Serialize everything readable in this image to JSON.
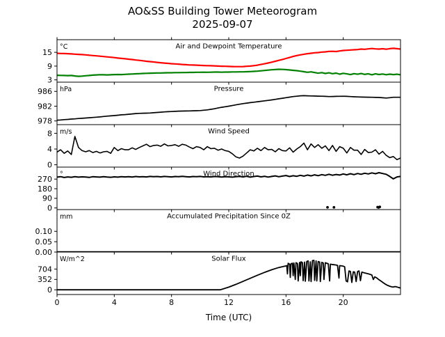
{
  "window": {
    "title": "AO&SS Building Tower Meteorogram",
    "subtitle": "2025-09-07"
  },
  "axis": {
    "xlabel": "Time (UTC)",
    "xlim": [
      0,
      24
    ],
    "xticks": [
      0,
      4,
      8,
      12,
      16,
      20
    ]
  },
  "colors": {
    "air": "#ff0000",
    "dewpoint": "#008000",
    "line": "#000000",
    "background": "#ffffff"
  },
  "chart_data": [
    {
      "type": "line",
      "id": "temperature",
      "title": "Air and Dewpoint Temperature",
      "unit": "°C",
      "ylim": [
        2,
        20.5
      ],
      "yticks": [
        3,
        9,
        15
      ],
      "series": [
        {
          "name": "air-temperature",
          "color": "#ff0000",
          "width": 2.2,
          "t0": 0,
          "dt": 0.25,
          "values": [
            14.6,
            14.5,
            14.45,
            14.4,
            14.3,
            14.2,
            14.1,
            14.0,
            13.9,
            13.75,
            13.6,
            13.45,
            13.3,
            13.15,
            13.0,
            12.85,
            12.7,
            12.5,
            12.35,
            12.2,
            12.0,
            11.85,
            11.65,
            11.5,
            11.3,
            11.1,
            10.95,
            10.8,
            10.6,
            10.45,
            10.3,
            10.2,
            10.05,
            9.95,
            9.85,
            9.7,
            9.6,
            9.5,
            9.45,
            9.4,
            9.3,
            9.25,
            9.2,
            9.15,
            9.1,
            9.0,
            8.95,
            8.9,
            8.85,
            8.8,
            8.75,
            8.75,
            8.8,
            8.9,
            9.0,
            9.2,
            9.4,
            9.7,
            10.0,
            10.35,
            10.7,
            11.1,
            11.5,
            11.9,
            12.3,
            12.75,
            13.2,
            13.6,
            13.9,
            14.15,
            14.4,
            14.6,
            14.8,
            14.9,
            15.1,
            15.2,
            15.4,
            15.45,
            15.35,
            15.6,
            15.8,
            15.9,
            16.0,
            16.1,
            16.2,
            16.4,
            16.3,
            16.5,
            16.65,
            16.5,
            16.4,
            16.55,
            16.35,
            16.6,
            16.75,
            16.6,
            16.4
          ]
        },
        {
          "name": "dewpoint-temperature",
          "color": "#008000",
          "width": 2.2,
          "t0": 0,
          "dt": 0.25,
          "values": [
            5.0,
            4.95,
            4.9,
            4.85,
            4.9,
            4.7,
            4.55,
            4.65,
            4.8,
            4.9,
            5.05,
            5.15,
            5.25,
            5.2,
            5.15,
            5.2,
            5.3,
            5.35,
            5.3,
            5.4,
            5.5,
            5.55,
            5.65,
            5.7,
            5.8,
            5.85,
            5.9,
            5.95,
            6.0,
            6.0,
            6.05,
            6.1,
            6.1,
            6.15,
            6.15,
            6.2,
            6.2,
            6.25,
            6.25,
            6.3,
            6.3,
            6.35,
            6.3,
            6.35,
            6.4,
            6.4,
            6.35,
            6.4,
            6.4,
            6.45,
            6.45,
            6.5,
            6.5,
            6.55,
            6.6,
            6.7,
            6.8,
            6.95,
            7.1,
            7.25,
            7.4,
            7.5,
            7.6,
            7.55,
            7.45,
            7.3,
            7.15,
            7.0,
            6.8,
            6.55,
            6.3,
            6.5,
            6.2,
            5.9,
            6.15,
            5.8,
            6.05,
            5.7,
            5.95,
            5.5,
            5.85,
            5.6,
            5.3,
            5.7,
            5.45,
            5.75,
            5.4,
            5.65,
            5.2,
            5.6,
            5.35,
            5.55,
            5.25,
            5.5,
            5.3,
            5.45,
            5.2
          ]
        }
      ]
    },
    {
      "type": "line",
      "id": "pressure",
      "title": "Pressure",
      "unit": "hPa",
      "ylim": [
        977,
        988.5
      ],
      "yticks": [
        978,
        982,
        986
      ],
      "series": [
        {
          "name": "pressure",
          "color": "#000000",
          "width": 1.7,
          "t0": 0,
          "dt": 0.25,
          "values": [
            978.2,
            978.27,
            978.35,
            978.42,
            978.5,
            978.57,
            978.65,
            978.72,
            978.8,
            978.87,
            978.95,
            979.02,
            979.1,
            979.2,
            979.3,
            979.37,
            979.45,
            979.55,
            979.65,
            979.72,
            979.8,
            979.9,
            980.0,
            980.05,
            980.1,
            980.12,
            980.15,
            980.22,
            980.3,
            980.37,
            980.45,
            980.5,
            980.55,
            980.6,
            980.65,
            980.67,
            980.7,
            980.72,
            980.75,
            980.77,
            980.8,
            980.9,
            981.0,
            981.15,
            981.3,
            981.5,
            981.7,
            981.85,
            982.0,
            982.17,
            982.35,
            982.52,
            982.7,
            982.82,
            982.95,
            983.07,
            983.2,
            983.32,
            983.45,
            983.57,
            983.7,
            983.85,
            984.0,
            984.15,
            984.3,
            984.45,
            984.6,
            984.7,
            984.8,
            984.85,
            984.8,
            984.77,
            984.75,
            984.72,
            984.7,
            984.65,
            984.6,
            984.62,
            984.65,
            984.67,
            984.7,
            984.65,
            984.6,
            984.55,
            984.5,
            984.47,
            984.45,
            984.42,
            984.4,
            984.37,
            984.35,
            984.27,
            984.2,
            984.3,
            984.4,
            984.4,
            984.4
          ]
        }
      ]
    },
    {
      "type": "line",
      "id": "wind-speed",
      "title": "Wind Speed",
      "unit": "m/s",
      "ylim": [
        -0.6,
        10.2
      ],
      "yticks": [
        0,
        4,
        8
      ],
      "series": [
        {
          "name": "wind-speed",
          "color": "#000000",
          "width": 1.6,
          "t0": 0,
          "dt": 0.25,
          "values": [
            3.2,
            3.8,
            2.9,
            3.5,
            2.6,
            7.2,
            4.4,
            3.6,
            3.3,
            3.6,
            3.1,
            3.4,
            3.0,
            3.3,
            3.4,
            2.9,
            4.4,
            3.6,
            4.1,
            3.8,
            3.8,
            4.3,
            3.9,
            4.4,
            4.8,
            5.2,
            4.6,
            4.9,
            5.0,
            4.7,
            5.3,
            4.8,
            4.9,
            5.1,
            4.7,
            5.2,
            5.0,
            4.5,
            4.1,
            4.6,
            4.4,
            3.8,
            4.6,
            4.1,
            4.2,
            3.7,
            4.0,
            3.6,
            3.4,
            2.8,
            2.0,
            1.7,
            2.2,
            3.0,
            3.8,
            3.5,
            4.2,
            3.6,
            4.4,
            3.8,
            3.9,
            3.3,
            4.1,
            3.6,
            3.5,
            4.3,
            3.2,
            4.0,
            4.6,
            5.5,
            3.8,
            5.3,
            4.4,
            5.1,
            4.2,
            4.8,
            3.6,
            4.9,
            3.4,
            4.6,
            4.2,
            3.0,
            4.4,
            3.7,
            3.7,
            2.6,
            3.9,
            3.1,
            3.2,
            3.8,
            2.7,
            3.4,
            2.4,
            1.8,
            2.1,
            1.3,
            1.7
          ]
        }
      ]
    },
    {
      "type": "line",
      "id": "wind-direction",
      "title": "Wind Direction",
      "unit": "°",
      "ylim": [
        -15,
        382
      ],
      "yticks": [
        0,
        90,
        180,
        270
      ],
      "series": [
        {
          "name": "wind-direction",
          "color": "#000000",
          "width": 2.0,
          "t0": 0,
          "dt": 0.25,
          "values": [
            288,
            293,
            285,
            290,
            287,
            292,
            288,
            291,
            289,
            286,
            292,
            290,
            288,
            293,
            289,
            287,
            291,
            288,
            293,
            290,
            292,
            289,
            294,
            291,
            293,
            290,
            295,
            292,
            294,
            291,
            295,
            293,
            290,
            294,
            292,
            296,
            293,
            290,
            294,
            292,
            295,
            291,
            293,
            290,
            294,
            292,
            289,
            293,
            291,
            288,
            292,
            295,
            290,
            296,
            288,
            294,
            298,
            291,
            296,
            289,
            295,
            300,
            292,
            298,
            303,
            294,
            301,
            296,
            305,
            298,
            308,
            300,
            310,
            302,
            312,
            305,
            315,
            306,
            313,
            308,
            318,
            310,
            320,
            312,
            322,
            315,
            325,
            318,
            328,
            320,
            330,
            322,
            315,
            295,
            272,
            290,
            295
          ]
        }
      ],
      "points": {
        "name": "wind-direction-wrap-points",
        "color": "#000000",
        "x": [
          18.9,
          19.35,
          22.4,
          22.48,
          22.55
        ],
        "values": [
          6,
          6,
          8,
          5,
          10
        ]
      }
    },
    {
      "type": "line",
      "id": "precipitation",
      "title": "Accumulated Precipitation Since 0Z",
      "unit": "mm",
      "ylim": [
        0,
        0.205
      ],
      "yticks": [
        0,
        0.05,
        0.1
      ],
      "ytick_labels": [
        "0.00",
        "0.05",
        "0.10"
      ],
      "series": [
        {
          "name": "accumulated-precipitation",
          "color": "#000000",
          "width": 2.5,
          "x": [
            0,
            24
          ],
          "values": [
            0,
            0
          ]
        }
      ]
    },
    {
      "type": "line",
      "id": "solar-flux",
      "title": "Solar Flux",
      "unit": "W/m^2",
      "ylim": [
        -160,
        1280
      ],
      "yticks": [
        0,
        352,
        704
      ],
      "series": [
        {
          "name": "solar-flux",
          "color": "#000000",
          "width": 1.8,
          "x": [
            0,
            11.4,
            11.5,
            12,
            12.5,
            13,
            13.5,
            14,
            14.5,
            15,
            15.5,
            16,
            16.05,
            16.1,
            16.15,
            16.25,
            16.3,
            16.35,
            16.45,
            16.5,
            16.55,
            16.65,
            16.7,
            16.8,
            16.85,
            16.95,
            17.0,
            17.05,
            17.15,
            17.2,
            17.3,
            17.35,
            17.45,
            17.55,
            17.6,
            17.7,
            17.75,
            17.85,
            17.95,
            18.0,
            18.1,
            18.15,
            18.25,
            18.35,
            18.4,
            18.5,
            18.6,
            18.65,
            18.75,
            18.85,
            18.95,
            19.05,
            19.1,
            19.2,
            19.35,
            19.5,
            19.6,
            19.7,
            19.75,
            19.9,
            20.0,
            20.1,
            20.2,
            20.3,
            20.4,
            20.5,
            20.6,
            20.7,
            20.8,
            20.9,
            21.0,
            21.1,
            21.2,
            21.3,
            21.45,
            21.6,
            21.75,
            21.9,
            22.0,
            22.1,
            22.2,
            22.35,
            22.5,
            22.65,
            22.8,
            22.95,
            23.1,
            23.25,
            23.4,
            23.5,
            23.6,
            23.7,
            23.85,
            24
          ],
          "values": [
            0,
            0,
            15,
            90,
            185,
            285,
            390,
            495,
            590,
            680,
            755,
            810,
            820,
            540,
            900,
            870,
            420,
            880,
            900,
            480,
            910,
            350,
            920,
            890,
            300,
            930,
            480,
            950,
            920,
            310,
            940,
            290,
            960,
            980,
            300,
            950,
            280,
            990,
            1000,
            320,
            980,
            300,
            960,
            940,
            280,
            930,
            910,
            350,
            920,
            900,
            880,
            300,
            870,
            860,
            850,
            840,
            830,
            400,
            820,
            810,
            800,
            780,
            300,
            270,
            640,
            620,
            250,
            610,
            600,
            280,
            620,
            640,
            310,
            600,
            580,
            560,
            540,
            520,
            500,
            350,
            440,
            400,
            340,
            290,
            240,
            190,
            150,
            120,
            100,
            95,
            110,
            105,
            80,
            60
          ]
        }
      ]
    }
  ]
}
